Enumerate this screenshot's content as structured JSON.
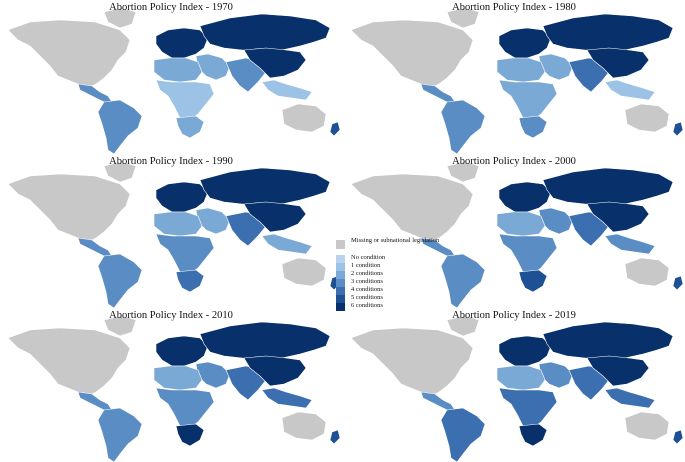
{
  "panels": [
    {
      "title": "Abortion Policy Index - 1970",
      "year": 1970
    },
    {
      "title": "Abortion Policy Index - 1980",
      "year": 1980
    },
    {
      "title": "Abortion Policy Index - 1990",
      "year": 1990
    },
    {
      "title": "Abortion Policy Index - 2000",
      "year": 2000
    },
    {
      "title": "Abortion Policy Index - 2010",
      "year": 2010
    },
    {
      "title": "Abortion Policy Index - 2019",
      "year": 2019
    }
  ],
  "legend": [
    {
      "label": "Missing or subnational legislation",
      "color": "#c8c8c8"
    },
    {
      "label": "No condition",
      "color": "#b9d3ec"
    },
    {
      "label": "1 condition",
      "color": "#9cc2e6"
    },
    {
      "label": "2 conditions",
      "color": "#7aa9d6"
    },
    {
      "label": "3 conditions",
      "color": "#5b8dc5"
    },
    {
      "label": "4 conditions",
      "color": "#3b6faf"
    },
    {
      "label": "5 conditions",
      "color": "#1d5194"
    },
    {
      "label": "6 conditions",
      "color": "#08306b"
    }
  ],
  "region_colors": {
    "1970": {
      "north_america": "#c8c8c8",
      "greenland": "#c8c8c8",
      "central_america": "#5b8dc5",
      "south_america": "#5b8dc5",
      "europe": "#08306b",
      "russia": "#08306b",
      "middle_east": "#7aa9d6",
      "north_africa": "#7aa9d6",
      "subsaharan_africa": "#9cc2e6",
      "south_africa": "#7aa9d6",
      "south_asia": "#5b8dc5",
      "east_asia": "#08306b",
      "southeast_asia": "#9cc2e6",
      "australia": "#c8c8c8",
      "new_zealand": "#1d5194"
    },
    "1980": {
      "north_america": "#c8c8c8",
      "greenland": "#c8c8c8",
      "central_america": "#5b8dc5",
      "south_america": "#5b8dc5",
      "europe": "#08306b",
      "russia": "#08306b",
      "middle_east": "#7aa9d6",
      "north_africa": "#7aa9d6",
      "subsaharan_africa": "#7aa9d6",
      "south_africa": "#5b8dc5",
      "south_asia": "#3b6faf",
      "east_asia": "#08306b",
      "southeast_asia": "#9cc2e6",
      "australia": "#c8c8c8",
      "new_zealand": "#1d5194"
    },
    "1990": {
      "north_america": "#c8c8c8",
      "greenland": "#c8c8c8",
      "central_america": "#5b8dc5",
      "south_america": "#5b8dc5",
      "europe": "#08306b",
      "russia": "#08306b",
      "middle_east": "#7aa9d6",
      "north_africa": "#7aa9d6",
      "subsaharan_africa": "#5b8dc5",
      "south_africa": "#3b6faf",
      "south_asia": "#3b6faf",
      "east_asia": "#08306b",
      "southeast_asia": "#7aa9d6",
      "australia": "#c8c8c8",
      "new_zealand": "#1d5194"
    },
    "2000": {
      "north_america": "#c8c8c8",
      "greenland": "#c8c8c8",
      "central_america": "#5b8dc5",
      "south_america": "#5b8dc5",
      "europe": "#08306b",
      "russia": "#08306b",
      "middle_east": "#5b8dc5",
      "north_africa": "#7aa9d6",
      "subsaharan_africa": "#5b8dc5",
      "south_africa": "#1d5194",
      "south_asia": "#3b6faf",
      "east_asia": "#08306b",
      "southeast_asia": "#5b8dc5",
      "australia": "#c8c8c8",
      "new_zealand": "#1d5194"
    },
    "2010": {
      "north_america": "#c8c8c8",
      "greenland": "#c8c8c8",
      "central_america": "#5b8dc5",
      "south_america": "#5b8dc5",
      "europe": "#08306b",
      "russia": "#08306b",
      "middle_east": "#5b8dc5",
      "north_africa": "#7aa9d6",
      "subsaharan_africa": "#5b8dc5",
      "south_africa": "#08306b",
      "south_asia": "#3b6faf",
      "east_asia": "#08306b",
      "southeast_asia": "#3b6faf",
      "australia": "#c8c8c8",
      "new_zealand": "#1d5194"
    },
    "2019": {
      "north_america": "#c8c8c8",
      "greenland": "#c8c8c8",
      "central_america": "#5b8dc5",
      "south_america": "#3b6faf",
      "europe": "#08306b",
      "russia": "#08306b",
      "middle_east": "#5b8dc5",
      "north_africa": "#7aa9d6",
      "subsaharan_africa": "#3b6faf",
      "south_africa": "#08306b",
      "south_asia": "#3b6faf",
      "east_asia": "#08306b",
      "southeast_asia": "#3b6faf",
      "australia": "#c8c8c8",
      "new_zealand": "#1d5194"
    }
  }
}
